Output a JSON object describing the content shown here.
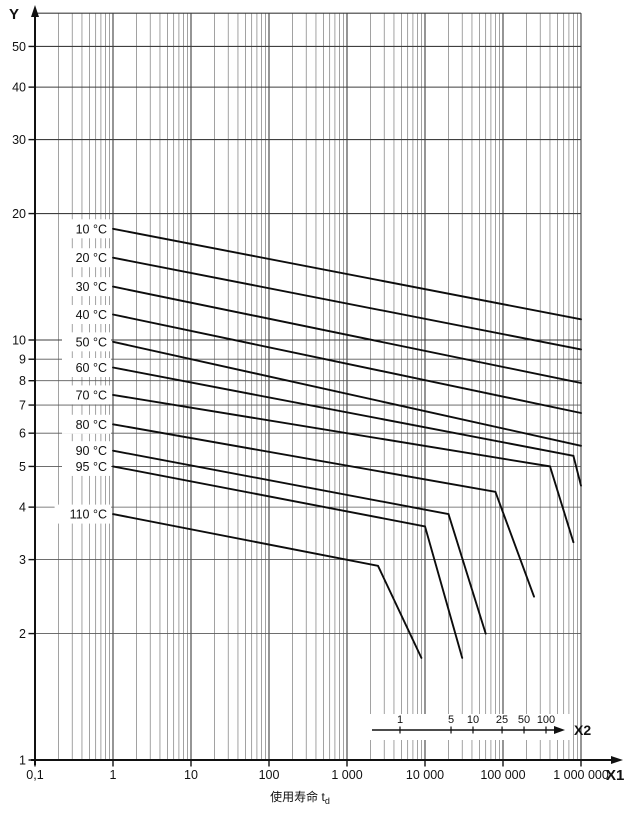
{
  "chart_data": {
    "type": "line",
    "scale": "log-log",
    "line_color": "#0d0d0d",
    "grid_major_color": "#3f3f3f",
    "grid_minor_color": "#7a7a7a",
    "x_axis": {
      "label": "X1",
      "scale": "log",
      "min": 0.1,
      "max": 1000000,
      "tick_labels": [
        "0,1",
        "1",
        "10",
        "100",
        "1 000",
        "10 000",
        "100 000",
        "1 000 000"
      ],
      "tick_values": [
        0.1,
        1,
        10,
        100,
        1000,
        10000,
        100000,
        1000000
      ],
      "caption": "使用寿命",
      "caption_symbol": "t",
      "caption_subscript": "d"
    },
    "y_axis": {
      "label": "Y",
      "scale": "log",
      "min": 1,
      "max": 60,
      "tick_labels": [
        "1",
        "2",
        "3",
        "4",
        "5",
        "6",
        "7",
        "8",
        "9",
        "10",
        "20",
        "30",
        "40",
        "50"
      ],
      "tick_values": [
        1,
        2,
        3,
        4,
        5,
        6,
        7,
        8,
        9,
        10,
        20,
        30,
        40,
        50
      ]
    },
    "x2_axis": {
      "label": "X2",
      "scale": "log",
      "tick_labels": [
        "1",
        "5",
        "10",
        "25",
        "50",
        "100"
      ],
      "tick_values": [
        1,
        5,
        10,
        25,
        50,
        100
      ]
    },
    "horizontal_gridline_values": [
      2,
      3,
      4,
      5,
      6,
      7,
      8,
      9,
      10,
      20,
      30,
      40,
      50,
      60
    ],
    "series": [
      {
        "name": "10 °C",
        "points": [
          [
            1,
            18.4
          ],
          [
            1000000,
            11.2
          ]
        ]
      },
      {
        "name": "20 °C",
        "points": [
          [
            1,
            15.7
          ],
          [
            1000000,
            9.5
          ]
        ]
      },
      {
        "name": "30 °C",
        "points": [
          [
            1,
            13.4
          ],
          [
            1000000,
            7.9
          ]
        ]
      },
      {
        "name": "40 °C",
        "points": [
          [
            1,
            11.5
          ],
          [
            1000000,
            6.7
          ]
        ]
      },
      {
        "name": "50 °C",
        "points": [
          [
            1,
            9.9
          ],
          [
            1000000,
            5.6
          ]
        ]
      },
      {
        "name": "60 °C",
        "points": [
          [
            1,
            8.6
          ],
          [
            800000,
            5.3
          ],
          [
            1000000,
            4.5
          ]
        ]
      },
      {
        "name": "70 °C",
        "points": [
          [
            1,
            7.4
          ],
          [
            400000,
            5.0
          ],
          [
            800000,
            3.3
          ]
        ]
      },
      {
        "name": "80 °C",
        "points": [
          [
            1,
            6.3
          ],
          [
            80000,
            4.35
          ],
          [
            250000,
            2.45
          ]
        ]
      },
      {
        "name": "90 °C",
        "points": [
          [
            1,
            5.45
          ],
          [
            20000,
            3.85
          ],
          [
            60000,
            2.0
          ]
        ]
      },
      {
        "name": "95 °C",
        "points": [
          [
            1,
            5.0
          ],
          [
            10000,
            3.6
          ],
          [
            30000,
            1.75
          ]
        ]
      },
      {
        "name": "110 °C",
        "points": [
          [
            1,
            3.85
          ],
          [
            2500,
            2.9
          ],
          [
            9000,
            1.75
          ]
        ]
      }
    ]
  }
}
